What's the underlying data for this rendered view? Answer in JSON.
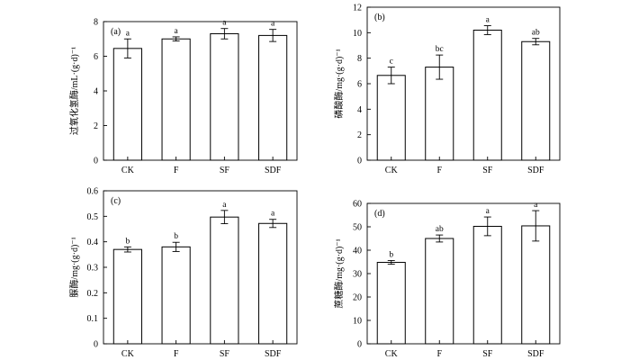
{
  "chart_data": [
    {
      "type": "bar",
      "panel_label": "(a)",
      "ylabel": "过氧化氢酶/mL·(g·d)⁻¹",
      "categories": [
        "CK",
        "F",
        "SF",
        "SDF"
      ],
      "values": [
        6.45,
        7.0,
        7.3,
        7.2
      ],
      "errors": [
        0.55,
        0.12,
        0.3,
        0.35
      ],
      "letters": [
        "a",
        "a",
        "a",
        "a"
      ],
      "ylim": [
        0,
        8
      ],
      "yticks": [
        "0",
        "2",
        "4",
        "6",
        "8"
      ]
    },
    {
      "type": "bar",
      "panel_label": "(b)",
      "ylabel": "磷酸酶/mg·(g·d)⁻¹",
      "categories": [
        "CK",
        "F",
        "SF",
        "SDF"
      ],
      "values": [
        6.65,
        7.3,
        10.2,
        9.3
      ],
      "errors": [
        0.65,
        0.95,
        0.35,
        0.25
      ],
      "letters": [
        "c",
        "bc",
        "a",
        "ab"
      ],
      "ylim": [
        0,
        12
      ],
      "yticks": [
        "0",
        "2",
        "4",
        "6",
        "8",
        "10",
        "12"
      ]
    },
    {
      "type": "bar",
      "panel_label": "(c)",
      "ylabel": "脲酶/mg·(g·d)⁻¹",
      "categories": [
        "CK",
        "F",
        "SF",
        "SDF"
      ],
      "values": [
        0.37,
        0.38,
        0.497,
        0.472
      ],
      "errors": [
        0.01,
        0.018,
        0.026,
        0.016
      ],
      "letters": [
        "b",
        "b",
        "a",
        "a"
      ],
      "ylim": [
        0,
        0.6
      ],
      "yticks": [
        "0",
        "0.1",
        "0.2",
        "0.3",
        "0.4",
        "0.5",
        "0.6"
      ]
    },
    {
      "type": "bar",
      "panel_label": "(d)",
      "ylabel": "蔗糖酶/mg·(g·d)⁻¹",
      "categories": [
        "CK",
        "F",
        "SF",
        "SDF"
      ],
      "values": [
        34.8,
        45.0,
        50.2,
        50.4
      ],
      "errors": [
        0.8,
        1.5,
        4.0,
        6.5
      ],
      "letters": [
        "b",
        "ab",
        "a",
        "a"
      ],
      "ylim": [
        0,
        60
      ],
      "yticks": [
        "0",
        "10",
        "20",
        "30",
        "40",
        "50",
        "60"
      ]
    }
  ]
}
